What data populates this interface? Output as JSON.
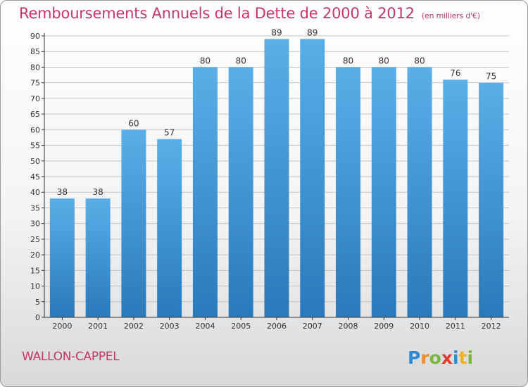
{
  "chart_data": {
    "type": "bar",
    "title": "Remboursements Annuels de la Dette de 2000 à 2012",
    "subtitle": "(en milliers d'€)",
    "categories": [
      "2000",
      "2001",
      "2002",
      "2003",
      "2004",
      "2005",
      "2006",
      "2007",
      "2008",
      "2009",
      "2010",
      "2011",
      "2012"
    ],
    "values": [
      38,
      38,
      60,
      57,
      80,
      80,
      89,
      89,
      80,
      80,
      80,
      76,
      75
    ],
    "ylim": [
      0,
      90
    ],
    "yticks": [
      0,
      5,
      10,
      15,
      20,
      25,
      30,
      35,
      40,
      45,
      50,
      55,
      60,
      65,
      70,
      75,
      80,
      85,
      90
    ],
    "grid": true,
    "colors": {
      "bar_top": "#5aafe8",
      "bar_bottom": "#2a79bb",
      "text": "#c8336a",
      "axis": "#333333"
    }
  },
  "footer": {
    "town": "WALLON-CAPPEL",
    "logo_text": "Proxiti"
  }
}
